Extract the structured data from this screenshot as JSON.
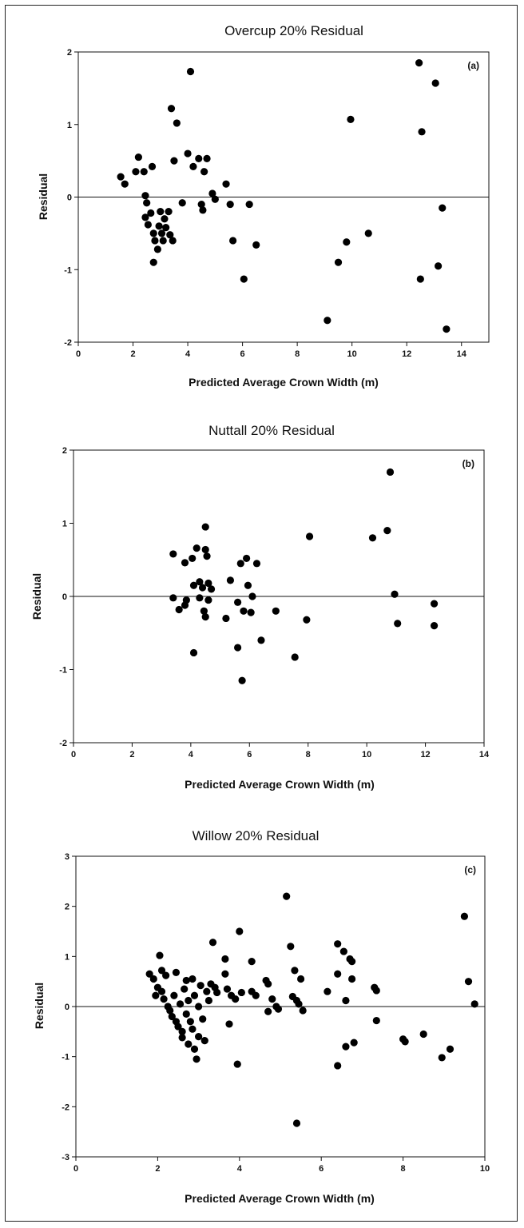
{
  "chart_data": [
    {
      "type": "scatter",
      "title": "Overcup 20% Residual",
      "panel_label": "(a)",
      "xlabel": "Predicted Average Crown Width (m)",
      "ylabel": "Residual",
      "xlim": [
        0,
        15
      ],
      "ylim": [
        -2,
        2
      ],
      "xticks": [
        0,
        2,
        4,
        6,
        8,
        10,
        12,
        14
      ],
      "yticks": [
        -2,
        -1,
        0,
        1,
        2
      ],
      "reference_line_y": 0,
      "grid": false,
      "points": [
        {
          "x": 1.55,
          "y": 0.28
        },
        {
          "x": 1.7,
          "y": 0.18
        },
        {
          "x": 2.1,
          "y": 0.35
        },
        {
          "x": 2.2,
          "y": 0.55
        },
        {
          "x": 2.4,
          "y": 0.35
        },
        {
          "x": 2.45,
          "y": 0.02
        },
        {
          "x": 2.5,
          "y": -0.08
        },
        {
          "x": 2.45,
          "y": -0.28
        },
        {
          "x": 2.55,
          "y": -0.38
        },
        {
          "x": 2.65,
          "y": -0.22
        },
        {
          "x": 2.7,
          "y": 0.42
        },
        {
          "x": 2.75,
          "y": -0.5
        },
        {
          "x": 2.8,
          "y": -0.6
        },
        {
          "x": 2.75,
          "y": -0.9
        },
        {
          "x": 2.9,
          "y": -0.72
        },
        {
          "x": 2.95,
          "y": -0.4
        },
        {
          "x": 3.0,
          "y": -0.2
        },
        {
          "x": 3.05,
          "y": -0.5
        },
        {
          "x": 3.1,
          "y": -0.6
        },
        {
          "x": 3.15,
          "y": -0.3
        },
        {
          "x": 3.2,
          "y": -0.42
        },
        {
          "x": 3.3,
          "y": -0.2
        },
        {
          "x": 3.35,
          "y": -0.52
        },
        {
          "x": 3.45,
          "y": -0.6
        },
        {
          "x": 3.4,
          "y": 1.22
        },
        {
          "x": 3.5,
          "y": 0.5
        },
        {
          "x": 3.6,
          "y": 1.02
        },
        {
          "x": 3.8,
          "y": -0.08
        },
        {
          "x": 4.0,
          "y": 0.6
        },
        {
          "x": 4.1,
          "y": 1.73
        },
        {
          "x": 4.2,
          "y": 0.42
        },
        {
          "x": 4.4,
          "y": 0.53
        },
        {
          "x": 4.5,
          "y": -0.1
        },
        {
          "x": 4.55,
          "y": -0.18
        },
        {
          "x": 4.6,
          "y": 0.35
        },
        {
          "x": 4.7,
          "y": 0.53
        },
        {
          "x": 4.9,
          "y": 0.05
        },
        {
          "x": 5.0,
          "y": -0.03
        },
        {
          "x": 5.4,
          "y": 0.18
        },
        {
          "x": 5.55,
          "y": -0.1
        },
        {
          "x": 5.65,
          "y": -0.6
        },
        {
          "x": 6.05,
          "y": -1.13
        },
        {
          "x": 6.25,
          "y": -0.1
        },
        {
          "x": 6.5,
          "y": -0.66
        },
        {
          "x": 9.1,
          "y": -1.7
        },
        {
          "x": 9.5,
          "y": -0.9
        },
        {
          "x": 9.8,
          "y": -0.62
        },
        {
          "x": 9.95,
          "y": 1.07
        },
        {
          "x": 10.6,
          "y": -0.5
        },
        {
          "x": 12.45,
          "y": 1.85
        },
        {
          "x": 12.5,
          "y": -1.13
        },
        {
          "x": 12.55,
          "y": 0.9
        },
        {
          "x": 13.05,
          "y": 1.57
        },
        {
          "x": 13.15,
          "y": -0.95
        },
        {
          "x": 13.3,
          "y": -0.15
        },
        {
          "x": 13.45,
          "y": -1.82
        }
      ]
    },
    {
      "type": "scatter",
      "title": "Nuttall 20% Residual",
      "panel_label": "(b)",
      "xlabel": "Predicted Average Crown Width (m)",
      "ylabel": "Residual",
      "xlim": [
        0,
        14
      ],
      "ylim": [
        -2,
        2
      ],
      "xticks": [
        0,
        2,
        4,
        6,
        8,
        10,
        12,
        14
      ],
      "yticks": [
        -2,
        -1,
        0,
        1,
        2
      ],
      "reference_line_y": 0,
      "grid": false,
      "points": [
        {
          "x": 3.4,
          "y": 0.58
        },
        {
          "x": 3.4,
          "y": -0.02
        },
        {
          "x": 3.6,
          "y": -0.18
        },
        {
          "x": 3.8,
          "y": 0.46
        },
        {
          "x": 3.8,
          "y": -0.12
        },
        {
          "x": 3.85,
          "y": -0.05
        },
        {
          "x": 4.05,
          "y": 0.52
        },
        {
          "x": 4.1,
          "y": 0.15
        },
        {
          "x": 4.1,
          "y": -0.77
        },
        {
          "x": 4.2,
          "y": 0.66
        },
        {
          "x": 4.3,
          "y": 0.2
        },
        {
          "x": 4.3,
          "y": -0.02
        },
        {
          "x": 4.4,
          "y": 0.12
        },
        {
          "x": 4.45,
          "y": -0.2
        },
        {
          "x": 4.5,
          "y": -0.28
        },
        {
          "x": 4.5,
          "y": 0.95
        },
        {
          "x": 4.5,
          "y": 0.64
        },
        {
          "x": 4.55,
          "y": 0.55
        },
        {
          "x": 4.6,
          "y": 0.18
        },
        {
          "x": 4.6,
          "y": -0.05
        },
        {
          "x": 4.7,
          "y": 0.1
        },
        {
          "x": 5.2,
          "y": -0.3
        },
        {
          "x": 5.35,
          "y": 0.22
        },
        {
          "x": 5.6,
          "y": -0.7
        },
        {
          "x": 5.6,
          "y": -0.08
        },
        {
          "x": 5.7,
          "y": 0.45
        },
        {
          "x": 5.75,
          "y": -1.15
        },
        {
          "x": 5.8,
          "y": -0.2
        },
        {
          "x": 5.9,
          "y": 0.52
        },
        {
          "x": 5.95,
          "y": 0.15
        },
        {
          "x": 6.05,
          "y": -0.22
        },
        {
          "x": 6.1,
          "y": 0.0
        },
        {
          "x": 6.25,
          "y": 0.45
        },
        {
          "x": 6.4,
          "y": -0.6
        },
        {
          "x": 6.9,
          "y": -0.2
        },
        {
          "x": 7.55,
          "y": -0.83
        },
        {
          "x": 7.95,
          "y": -0.32
        },
        {
          "x": 8.05,
          "y": 0.82
        },
        {
          "x": 10.2,
          "y": 0.8
        },
        {
          "x": 10.7,
          "y": 0.9
        },
        {
          "x": 10.8,
          "y": 1.7
        },
        {
          "x": 10.95,
          "y": 0.03
        },
        {
          "x": 11.05,
          "y": -0.37
        },
        {
          "x": 12.3,
          "y": -0.1
        },
        {
          "x": 12.3,
          "y": -0.4
        }
      ]
    },
    {
      "type": "scatter",
      "title": "Willow 20% Residual",
      "panel_label": "(c)",
      "xlabel": "Predicted Average Crown Width (m)",
      "ylabel": "Residual",
      "xlim": [
        0,
        10
      ],
      "ylim": [
        -3,
        3
      ],
      "xticks": [
        0,
        2,
        4,
        6,
        8,
        10
      ],
      "yticks": [
        -3,
        -2,
        -1,
        0,
        1,
        2,
        3
      ],
      "reference_line_y": 0,
      "grid": false,
      "points": [
        {
          "x": 1.8,
          "y": 0.65
        },
        {
          "x": 1.9,
          "y": 0.55
        },
        {
          "x": 1.95,
          "y": 0.22
        },
        {
          "x": 2.0,
          "y": 0.38
        },
        {
          "x": 2.05,
          "y": 1.02
        },
        {
          "x": 2.1,
          "y": 0.72
        },
        {
          "x": 2.1,
          "y": 0.3
        },
        {
          "x": 2.15,
          "y": 0.15
        },
        {
          "x": 2.2,
          "y": 0.62
        },
        {
          "x": 2.25,
          "y": 0.0
        },
        {
          "x": 2.3,
          "y": -0.08
        },
        {
          "x": 2.35,
          "y": -0.2
        },
        {
          "x": 2.4,
          "y": 0.22
        },
        {
          "x": 2.45,
          "y": -0.3
        },
        {
          "x": 2.45,
          "y": 0.68
        },
        {
          "x": 2.5,
          "y": -0.4
        },
        {
          "x": 2.55,
          "y": 0.05
        },
        {
          "x": 2.6,
          "y": -0.62
        },
        {
          "x": 2.6,
          "y": -0.5
        },
        {
          "x": 2.65,
          "y": 0.35
        },
        {
          "x": 2.7,
          "y": 0.52
        },
        {
          "x": 2.7,
          "y": -0.15
        },
        {
          "x": 2.75,
          "y": -0.75
        },
        {
          "x": 2.75,
          "y": 0.12
        },
        {
          "x": 2.8,
          "y": -0.3
        },
        {
          "x": 2.85,
          "y": 0.55
        },
        {
          "x": 2.85,
          "y": -0.45
        },
        {
          "x": 2.9,
          "y": 0.22
        },
        {
          "x": 2.9,
          "y": -0.85
        },
        {
          "x": 2.95,
          "y": -1.05
        },
        {
          "x": 3.0,
          "y": -0.6
        },
        {
          "x": 3.0,
          "y": 0.0
        },
        {
          "x": 3.05,
          "y": 0.42
        },
        {
          "x": 3.1,
          "y": -0.25
        },
        {
          "x": 3.15,
          "y": -0.68
        },
        {
          "x": 3.2,
          "y": 0.3
        },
        {
          "x": 3.25,
          "y": 0.12
        },
        {
          "x": 3.3,
          "y": 0.45
        },
        {
          "x": 3.35,
          "y": 1.28
        },
        {
          "x": 3.4,
          "y": 0.38
        },
        {
          "x": 3.45,
          "y": 0.28
        },
        {
          "x": 3.65,
          "y": 0.95
        },
        {
          "x": 3.65,
          "y": 0.65
        },
        {
          "x": 3.7,
          "y": 0.35
        },
        {
          "x": 3.75,
          "y": -0.35
        },
        {
          "x": 3.8,
          "y": 0.22
        },
        {
          "x": 3.9,
          "y": 0.15
        },
        {
          "x": 3.95,
          "y": -1.15
        },
        {
          "x": 4.0,
          "y": 1.5
        },
        {
          "x": 4.05,
          "y": 0.28
        },
        {
          "x": 4.3,
          "y": 0.9
        },
        {
          "x": 4.3,
          "y": 0.3
        },
        {
          "x": 4.4,
          "y": 0.22
        },
        {
          "x": 4.65,
          "y": 0.52
        },
        {
          "x": 4.7,
          "y": 0.45
        },
        {
          "x": 4.7,
          "y": -0.1
        },
        {
          "x": 4.8,
          "y": 0.15
        },
        {
          "x": 4.9,
          "y": 0.0
        },
        {
          "x": 4.95,
          "y": -0.05
        },
        {
          "x": 5.15,
          "y": 2.2
        },
        {
          "x": 5.25,
          "y": 1.2
        },
        {
          "x": 5.3,
          "y": 0.2
        },
        {
          "x": 5.35,
          "y": 0.72
        },
        {
          "x": 5.4,
          "y": 0.12
        },
        {
          "x": 5.4,
          "y": -2.33
        },
        {
          "x": 5.45,
          "y": 0.05
        },
        {
          "x": 5.5,
          "y": 0.55
        },
        {
          "x": 5.55,
          "y": -0.08
        },
        {
          "x": 6.15,
          "y": 0.3
        },
        {
          "x": 6.4,
          "y": 1.25
        },
        {
          "x": 6.4,
          "y": 0.65
        },
        {
          "x": 6.4,
          "y": -1.18
        },
        {
          "x": 6.55,
          "y": 1.1
        },
        {
          "x": 6.6,
          "y": 0.12
        },
        {
          "x": 6.6,
          "y": -0.8
        },
        {
          "x": 6.7,
          "y": 0.95
        },
        {
          "x": 6.75,
          "y": 0.55
        },
        {
          "x": 6.75,
          "y": 0.9
        },
        {
          "x": 6.8,
          "y": -0.72
        },
        {
          "x": 7.3,
          "y": 0.38
        },
        {
          "x": 7.35,
          "y": 0.32
        },
        {
          "x": 7.35,
          "y": -0.28
        },
        {
          "x": 8.0,
          "y": -0.65
        },
        {
          "x": 8.05,
          "y": -0.7
        },
        {
          "x": 8.5,
          "y": -0.55
        },
        {
          "x": 8.95,
          "y": -1.02
        },
        {
          "x": 9.15,
          "y": -0.85
        },
        {
          "x": 9.5,
          "y": 1.8
        },
        {
          "x": 9.6,
          "y": 0.5
        },
        {
          "x": 9.75,
          "y": 0.05
        }
      ]
    }
  ]
}
